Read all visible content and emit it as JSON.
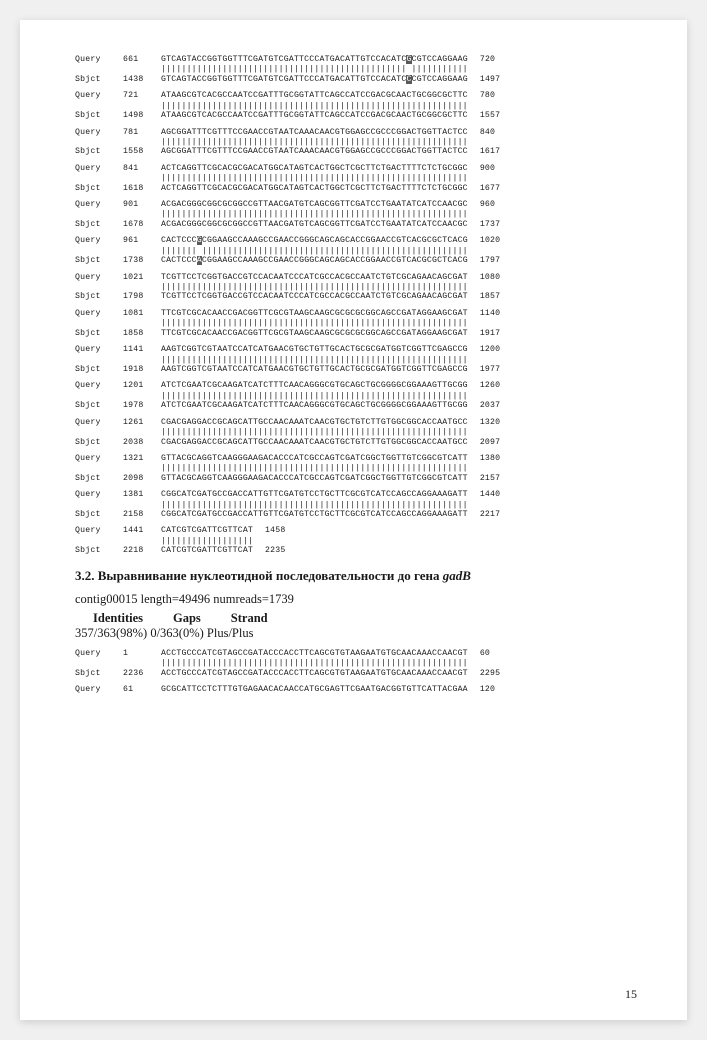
{
  "alignment1": {
    "blocks": [
      {
        "qLabel": "Query",
        "qStart": "661",
        "qSeq": "GTCAGTACCGGTGGTTTCGATGTCGATTCCCATGACATTGTCCACATC",
        "qHl": "G",
        "qSeq2": "CGTCCAGGAAG",
        "qEnd": "720",
        "sLabel": "Sbjct",
        "sStart": "1438",
        "sSeq": "GTCAGTACCGGTGGTTTCGATGTCGATTCCCATGACATTGTCCACATC",
        "sHl": "C",
        "sSeq2": "CGTCCAGGAAG",
        "sEnd": "1497",
        "match": "|||||||||||||||||||||||||||||||||||||||||||||||| |||||||||||"
      },
      {
        "qLabel": "Query",
        "qStart": "721",
        "qSeq": "ATAAGCGTCACGCCAATCCGATTTGCGGTATTCAGCCATCCGACGCAACTGCGGCGCTTC",
        "qEnd": "780",
        "sLabel": "Sbjct",
        "sStart": "1498",
        "sSeq": "ATAAGCGTCACGCCAATCCGATTTGCGGTATTCAGCCATCCGACGCAACTGCGGCGCTTC",
        "sEnd": "1557",
        "match": "||||||||||||||||||||||||||||||||||||||||||||||||||||||||||||"
      },
      {
        "qLabel": "Query",
        "qStart": "781",
        "qSeq": "AGCGGATTTCGTTTCCGAACCGTAATCAAACAACGTGGAGCCGCCCGGACTGGTTACTCC",
        "qEnd": "840",
        "sLabel": "Sbjct",
        "sStart": "1558",
        "sSeq": "AGCGGATTTCGTTTCCGAACCGTAATCAAACAACGTGGAGCCGCCCGGACTGGTTACTCC",
        "sEnd": "1617",
        "match": "||||||||||||||||||||||||||||||||||||||||||||||||||||||||||||"
      },
      {
        "qLabel": "Query",
        "qStart": "841",
        "qSeq": "ACTCAGGTTCGCACGCGACATGGCATAGTCACTGGCTCGCTTCTGACTTTTCTCTGCGGC",
        "qEnd": "900",
        "sLabel": "Sbjct",
        "sStart": "1618",
        "sSeq": "ACTCAGGTTCGCACGCGACATGGCATAGTCACTGGCTCGCTTCTGACTTTTCTCTGCGGC",
        "sEnd": "1677",
        "match": "||||||||||||||||||||||||||||||||||||||||||||||||||||||||||||"
      },
      {
        "qLabel": "Query",
        "qStart": "901",
        "qSeq": "ACGACGGGCGGCGCGGCCGTTAACGATGTCAGCGGTTCGATCCTGAATATCATCCAACGC",
        "qEnd": "960",
        "sLabel": "Sbjct",
        "sStart": "1678",
        "sSeq": "ACGACGGGCGGCGCGGCCGTTAACGATGTCAGCGGTTCGATCCTGAATATCATCCAACGC",
        "sEnd": "1737",
        "match": "||||||||||||||||||||||||||||||||||||||||||||||||||||||||||||"
      },
      {
        "qLabel": "Query",
        "qStart": "961",
        "qSeq": "CACTCCC",
        "qHl": "G",
        "qSeq2": "CGGAAGCCAAAGCCGAACCGGGCAGCAGCACCGGAACCGTCACGCGCTCACG",
        "qEnd": "1020",
        "sLabel": "Sbjct",
        "sStart": "1738",
        "sSeq": "CACTCCC",
        "sHl": "A",
        "sSeq2": "CGGAAGCCAAAGCCGAACCGGGCAGCAGCACCGGAACCGTCACGCGCTCACG",
        "sEnd": "1797",
        "match": "||||||| ||||||||||||||||||||||||||||||||||||||||||||||||||||"
      },
      {
        "qLabel": "Query",
        "qStart": "1021",
        "qSeq": "TCGTTCCTCGGTGACCGTCCACAATCCCATCGCCACGCCAATCTGTCGCAGAACAGCGAT",
        "qEnd": "1080",
        "sLabel": "Sbjct",
        "sStart": "1798",
        "sSeq": "TCGTTCCTCGGTGACCGTCCACAATCCCATCGCCACGCCAATCTGTCGCAGAACAGCGAT",
        "sEnd": "1857",
        "match": "||||||||||||||||||||||||||||||||||||||||||||||||||||||||||||"
      },
      {
        "qLabel": "Query",
        "qStart": "1081",
        "qSeq": "TTCGTCGCACAACCGACGGTTCGCGTAAGCAAGCGCGCGCGGCAGCCGATAGGAAGCGAT",
        "qEnd": "1140",
        "sLabel": "Sbjct",
        "sStart": "1858",
        "sSeq": "TTCGTCGCACAACCGACGGTTCGCGTAAGCAAGCGCGCGCGGCAGCCGATAGGAAGCGAT",
        "sEnd": "1917",
        "match": "||||||||||||||||||||||||||||||||||||||||||||||||||||||||||||"
      },
      {
        "qLabel": "Query",
        "qStart": "1141",
        "qSeq": "AAGTCGGTCGTAATCCATCATGAACGTGCTGTTGCACTGCGCGATGGTCGGTTCGAGCCG",
        "qEnd": "1200",
        "sLabel": "Sbjct",
        "sStart": "1918",
        "sSeq": "AAGTCGGTCGTAATCCATCATGAACGTGCTGTTGCACTGCGCGATGGTCGGTTCGAGCCG",
        "sEnd": "1977",
        "match": "||||||||||||||||||||||||||||||||||||||||||||||||||||||||||||"
      },
      {
        "qLabel": "Query",
        "qStart": "1201",
        "qSeq": "ATCTCGAATCGCAAGATCATCTTTCAACAGGGCGTGCAGCTGCGGGGCGGAAAGTTGCGG",
        "qEnd": "1260",
        "sLabel": "Sbjct",
        "sStart": "1978",
        "sSeq": "ATCTCGAATCGCAAGATCATCTTTCAACAGGGCGTGCAGCTGCGGGGCGGAAAGTTGCGG",
        "sEnd": "2037",
        "match": "||||||||||||||||||||||||||||||||||||||||||||||||||||||||||||"
      },
      {
        "qLabel": "Query",
        "qStart": "1261",
        "qSeq": "CGACGAGGACCGCAGCATTGCCAACAAATCAACGTGCTGTCTTGTGGCGGCACCAATGCC",
        "qEnd": "1320",
        "sLabel": "Sbjct",
        "sStart": "2038",
        "sSeq": "CGACGAGGACCGCAGCATTGCCAACAAATCAACGTGCTGTCTTGTGGCGGCACCAATGCC",
        "sEnd": "2097",
        "match": "||||||||||||||||||||||||||||||||||||||||||||||||||||||||||||"
      },
      {
        "qLabel": "Query",
        "qStart": "1321",
        "qSeq": "GTTACGCAGGTCAAGGGAAGACACCCATCGCCAGTCGATCGGCTGGTTGTCGGCGTCATT",
        "qEnd": "1380",
        "sLabel": "Sbjct",
        "sStart": "2098",
        "sSeq": "GTTACGCAGGTCAAGGGAAGACACCCATCGCCAGTCGATCGGCTGGTTGTCGGCGTCATT",
        "sEnd": "2157",
        "match": "||||||||||||||||||||||||||||||||||||||||||||||||||||||||||||"
      },
      {
        "qLabel": "Query",
        "qStart": "1381",
        "qSeq": "CGGCATCGATGCCGACCATTGTTCGATGTCCTGCTTCGCGTCATCCAGCCAGGAAAGATT",
        "qEnd": "1440",
        "sLabel": "Sbjct",
        "sStart": "2158",
        "sSeq": "CGGCATCGATGCCGACCATTGTTCGATGTCCTGCTTCGCGTCATCCAGCCAGGAAAGATT",
        "sEnd": "2217",
        "match": "||||||||||||||||||||||||||||||||||||||||||||||||||||||||||||"
      },
      {
        "qLabel": "Query",
        "qStart": "1441",
        "qSeq": "CATCGTCGATTCGTTCAT",
        "qEnd": "1458",
        "sLabel": "Sbjct",
        "sStart": "2218",
        "sSeq": "CATCGTCGATTCGTTCAT",
        "sEnd": "2235",
        "match": "||||||||||||||||||",
        "short": true
      }
    ]
  },
  "section": {
    "title": "3.2. Выравнивание нуклеотидной последовательности до гена gadB",
    "geneItalic": "gadB",
    "contig": "contig00015 length=49496 numreads=1739",
    "headers": {
      "identities": "Identities",
      "gaps": "Gaps",
      "strand": "Strand"
    },
    "stats": "357/363(98%) 0/363(0%) Plus/Plus"
  },
  "alignment2": {
    "blocks": [
      {
        "qLabel": "Query",
        "qStart": "1",
        "qSeq": "ACCTGCCCATCGTAGCCGATACCCACCTTCAGCGTGTAAGAATGTGCAACAAACCAACGT",
        "qEnd": "60",
        "sLabel": "Sbjct",
        "sStart": "2236",
        "sSeq": "ACCTGCCCATCGTAGCCGATACCCACCTTCAGCGTGTAAGAATGTGCAACAAACCAACGT",
        "sEnd": "2295",
        "match": "||||||||||||||||||||||||||||||||||||||||||||||||||||||||||||"
      },
      {
        "qLabel": "Query",
        "qStart": "61",
        "qSeq": "GCGCATTCCTCTTTGTGAGAACACAACCATGCGAGTTCGAATGACGGTGTTCATTACGAA",
        "qEnd": "120",
        "singleRow": true
      }
    ]
  },
  "pageNumber": "15"
}
